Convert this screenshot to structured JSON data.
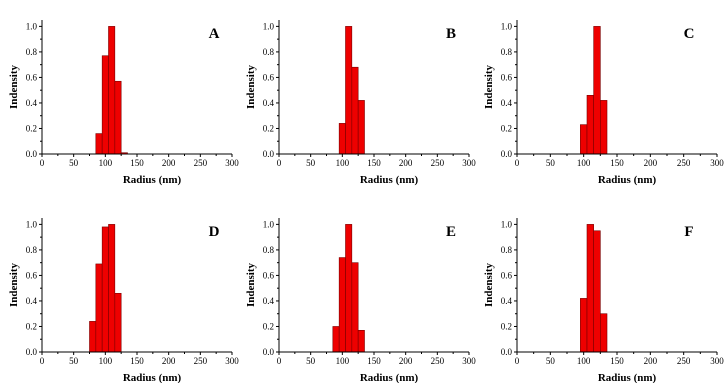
{
  "figure": {
    "background": "#ffffff"
  },
  "chart_data": [
    {
      "type": "bar",
      "panel_label": "A",
      "xlabel": "Radius (nm)",
      "ylabel": "Indensity",
      "xlim": [
        0,
        300
      ],
      "ylim": [
        0,
        1.05
      ],
      "xticks": [
        "0",
        "50",
        "100",
        "150",
        "200",
        "250",
        "300"
      ],
      "yticks": [
        "0.0",
        "0.2",
        "0.4",
        "0.6",
        "0.8",
        "1.0"
      ],
      "bar_width": 10,
      "color": "#ee0000",
      "x": [
        90,
        100,
        110,
        120,
        130
      ],
      "values": [
        0.16,
        0.77,
        1.0,
        0.57,
        0.01
      ]
    },
    {
      "type": "bar",
      "panel_label": "B",
      "xlabel": "Radius (nm)",
      "ylabel": "Indensity",
      "xlim": [
        0,
        300
      ],
      "ylim": [
        0,
        1.05
      ],
      "xticks": [
        "0",
        "50",
        "100",
        "150",
        "200",
        "250",
        "300"
      ],
      "yticks": [
        "0.0",
        "0.2",
        "0.4",
        "0.6",
        "0.8",
        "1.0"
      ],
      "bar_width": 10,
      "color": "#ee0000",
      "x": [
        100,
        110,
        120,
        130
      ],
      "values": [
        0.24,
        1.0,
        0.68,
        0.42
      ]
    },
    {
      "type": "bar",
      "panel_label": "C",
      "xlabel": "Radius (nm)",
      "ylabel": "Indensity",
      "xlim": [
        0,
        300
      ],
      "ylim": [
        0,
        1.05
      ],
      "xticks": [
        "0",
        "50",
        "100",
        "150",
        "200",
        "250",
        "300"
      ],
      "yticks": [
        "0.0",
        "0.2",
        "0.4",
        "0.6",
        "0.8",
        "1.0"
      ],
      "bar_width": 10,
      "color": "#ee0000",
      "x": [
        100,
        110,
        120,
        130
      ],
      "values": [
        0.23,
        0.46,
        1.0,
        0.42
      ]
    },
    {
      "type": "bar",
      "panel_label": "D",
      "xlabel": "Radius (nm)",
      "ylabel": "Indensity",
      "xlim": [
        0,
        300
      ],
      "ylim": [
        0,
        1.05
      ],
      "xticks": [
        "0",
        "50",
        "100",
        "150",
        "200",
        "250",
        "300"
      ],
      "yticks": [
        "0.0",
        "0.2",
        "0.4",
        "0.6",
        "0.8",
        "1.0"
      ],
      "bar_width": 10,
      "color": "#ee0000",
      "x": [
        80,
        90,
        100,
        110,
        120
      ],
      "values": [
        0.24,
        0.69,
        0.98,
        1.0,
        0.46
      ]
    },
    {
      "type": "bar",
      "panel_label": "E",
      "xlabel": "Radius (nm)",
      "ylabel": "Indensity",
      "xlim": [
        0,
        300
      ],
      "ylim": [
        0,
        1.05
      ],
      "xticks": [
        "0",
        "50",
        "100",
        "150",
        "200",
        "250",
        "300"
      ],
      "yticks": [
        "0.0",
        "0.2",
        "0.4",
        "0.6",
        "0.8",
        "1.0"
      ],
      "bar_width": 10,
      "color": "#ee0000",
      "x": [
        90,
        100,
        110,
        120,
        130
      ],
      "values": [
        0.2,
        0.74,
        1.0,
        0.7,
        0.17
      ]
    },
    {
      "type": "bar",
      "panel_label": "F",
      "xlabel": "Radius (nm)",
      "ylabel": "Indensity",
      "xlim": [
        0,
        300
      ],
      "ylim": [
        0,
        1.05
      ],
      "xticks": [
        "0",
        "50",
        "100",
        "150",
        "200",
        "250",
        "300"
      ],
      "yticks": [
        "0.0",
        "0.2",
        "0.4",
        "0.6",
        "0.8",
        "1.0"
      ],
      "bar_width": 10,
      "color": "#ee0000",
      "x": [
        100,
        110,
        120,
        130
      ],
      "values": [
        0.42,
        1.0,
        0.95,
        0.3
      ]
    }
  ]
}
